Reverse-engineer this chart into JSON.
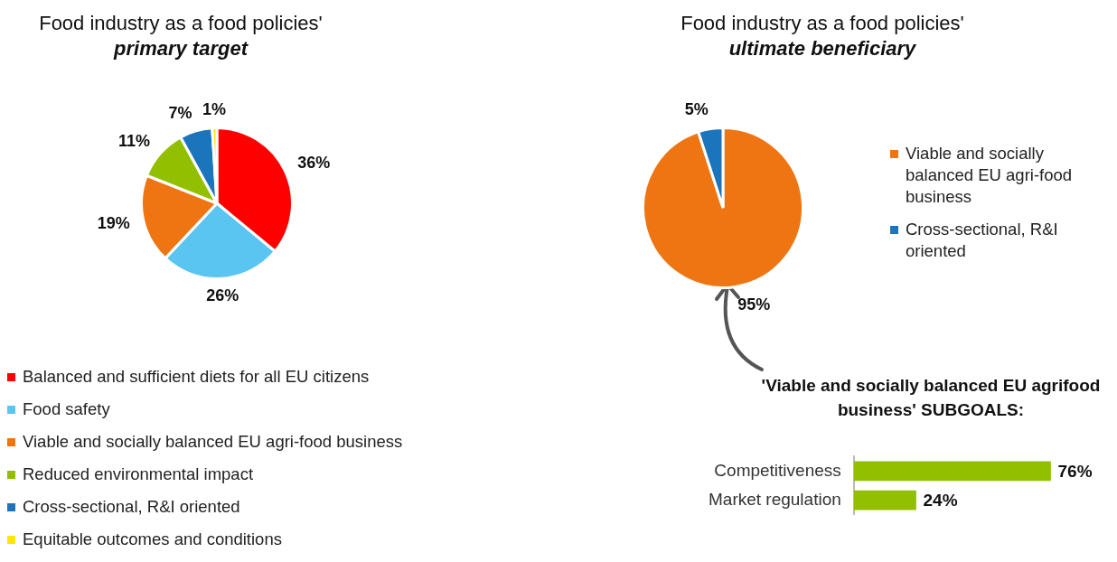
{
  "chart_data": [
    {
      "type": "pie",
      "title": "Food industry as a food policies'",
      "subtitle": "primary target",
      "categories": [
        "Balanced and sufficient diets for all EU citizens",
        "Food safety",
        "Viable and socially balanced EU agri-food business",
        "Reduced environmental impact",
        "Cross-sectional, R&I oriented",
        "Equitable outcomes and conditions"
      ],
      "values": [
        36,
        26,
        19,
        11,
        7,
        1
      ],
      "colors": [
        "#ff0000",
        "#5bc5f2",
        "#ee7512",
        "#92c000",
        "#1b75bc",
        "#ffe600"
      ],
      "value_labels": [
        "36%",
        "26%",
        "19%",
        "11%",
        "7%",
        "1%"
      ],
      "legend": "bottom"
    },
    {
      "type": "pie",
      "title": "Food industry as a food policies'",
      "subtitle": "ultimate beneficiary",
      "categories": [
        "Viable and socially balanced EU agri-food business",
        "Cross-sectional, R&I oriented"
      ],
      "values": [
        95,
        5
      ],
      "colors": [
        "#ee7512",
        "#1b75bc"
      ],
      "value_labels": [
        "95%",
        "5%"
      ],
      "legend": "right"
    },
    {
      "type": "bar",
      "orientation": "horizontal",
      "title": "'Viable and socially balanced EU agrifood business' SUBGOALS:",
      "categories": [
        "Competitiveness",
        "Market regulation"
      ],
      "values": [
        76,
        24
      ],
      "color": "#92c000",
      "value_labels": [
        "76%",
        "24%"
      ]
    }
  ]
}
